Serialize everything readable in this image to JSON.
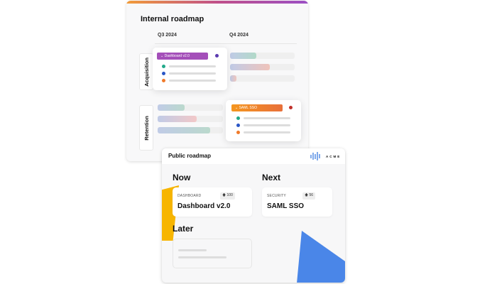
{
  "internal": {
    "title": "Internal roadmap",
    "quarters": [
      "Q3 2024",
      "Q4 2024"
    ],
    "rows": [
      "Acquisition",
      "Retention"
    ],
    "acquisition_bars": [
      {
        "fill": 0.41,
        "color": "#7fc7a8"
      },
      {
        "fill": 0.62,
        "color": "#f0a090"
      },
      {
        "fill": 0.1,
        "color": "#f0a090"
      }
    ],
    "retention_bars": [
      {
        "fill": 0.41,
        "color": "#8fc7b0"
      },
      {
        "fill": 0.6,
        "color": "#f5a8a8"
      },
      {
        "fill": 0.8,
        "color": "#8fc7b0"
      }
    ],
    "popups": [
      {
        "tag": "Dashboard v2.0",
        "color": "#a44fb9"
      },
      {
        "tag": "SAML SSO",
        "color": "#f08a2e"
      }
    ],
    "dot_colors": [
      "#22a98a",
      "#2a56c6",
      "#f07a2a"
    ]
  },
  "public": {
    "title": "Public roadmap",
    "logo_text": "ACME",
    "columns": {
      "now": "Now",
      "next": "Next",
      "later": "Later"
    },
    "cards": [
      {
        "category": "DASHBOARD",
        "votes": "100",
        "title": "Dashboard v2.0"
      },
      {
        "category": "SECURITY",
        "votes": "56",
        "title": "SAML SSO"
      }
    ],
    "accent_yellow": "#f7b500",
    "accent_blue": "#4a86e8"
  }
}
